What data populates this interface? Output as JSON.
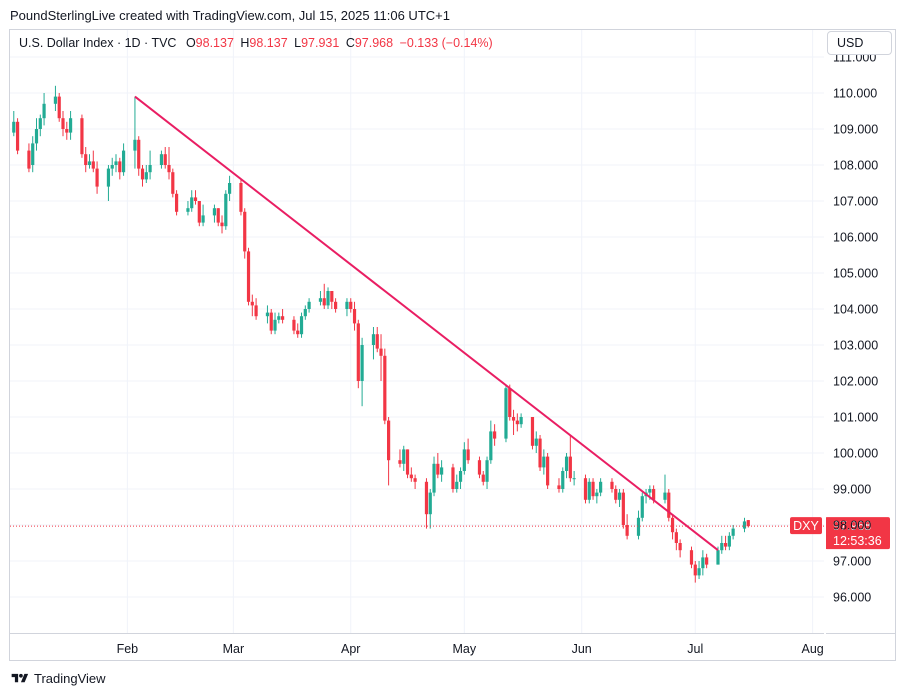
{
  "header": {
    "attribution": "PoundSterlingLive created with TradingView.com, Jul 15, 2025 11:06 UTC+1"
  },
  "legend": {
    "symbol": "U.S. Dollar Index · 1D · TVC",
    "open_label": "O",
    "open": "98.137",
    "high_label": "H",
    "high": "98.137",
    "low_label": "L",
    "low": "97.931",
    "close_label": "C",
    "close": "97.968",
    "change": "−0.133 (−0.14%)"
  },
  "currency": "USD",
  "footer": {
    "brand": "TradingView"
  },
  "colors": {
    "up": "#22ab94",
    "down": "#f23645",
    "trendline": "#e91e63",
    "grid": "#f0f3fa",
    "border": "#d1d4dc"
  },
  "chart_data": {
    "type": "candlestick",
    "symbol_tag": "DXY",
    "last_price": "97.968",
    "countdown": "12:53:36",
    "y_ticks": [
      "96.000",
      "97.000",
      "98.000",
      "99.000",
      "100.000",
      "101.000",
      "102.000",
      "103.000",
      "104.000",
      "105.000",
      "106.000",
      "107.000",
      "108.000",
      "109.000",
      "110.000",
      "111.000"
    ],
    "ylim": [
      94.9,
      111.2
    ],
    "x_ticks": [
      {
        "label": "Feb",
        "date": "2025-02-01"
      },
      {
        "label": "Mar",
        "date": "2025-03-01"
      },
      {
        "label": "Apr",
        "date": "2025-04-01"
      },
      {
        "label": "May",
        "date": "2025-05-01"
      },
      {
        "label": "Jun",
        "date": "2025-06-01"
      },
      {
        "label": "Jul",
        "date": "2025-07-01"
      },
      {
        "label": "Aug",
        "date": "2025-08-01"
      }
    ],
    "x_start": "2025-01-01",
    "x_end": "2025-08-04",
    "trendline": [
      {
        "date": "2025-02-03",
        "value": 109.9
      },
      {
        "date": "2025-07-07",
        "value": 97.3
      }
    ],
    "candles": [
      {
        "d": "2025-01-02",
        "o": 108.9,
        "h": 109.5,
        "l": 108.8,
        "c": 109.2
      },
      {
        "d": "2025-01-03",
        "o": 109.2,
        "h": 109.3,
        "l": 108.3,
        "c": 108.4
      },
      {
        "d": "2025-01-06",
        "o": 108.4,
        "h": 108.6,
        "l": 107.8,
        "c": 107.9
      },
      {
        "d": "2025-01-07",
        "o": 108.0,
        "h": 108.8,
        "l": 107.8,
        "c": 108.6
      },
      {
        "d": "2025-01-08",
        "o": 108.6,
        "h": 109.3,
        "l": 108.4,
        "c": 109.0
      },
      {
        "d": "2025-01-09",
        "o": 109.0,
        "h": 109.4,
        "l": 108.8,
        "c": 109.3
      },
      {
        "d": "2025-01-10",
        "o": 109.3,
        "h": 110.0,
        "l": 109.1,
        "c": 109.7
      },
      {
        "d": "2025-01-13",
        "o": 109.7,
        "h": 110.2,
        "l": 109.5,
        "c": 109.9
      },
      {
        "d": "2025-01-14",
        "o": 109.9,
        "h": 110.0,
        "l": 109.2,
        "c": 109.3
      },
      {
        "d": "2025-01-15",
        "o": 109.3,
        "h": 109.5,
        "l": 108.8,
        "c": 109.0
      },
      {
        "d": "2025-01-16",
        "o": 109.0,
        "h": 109.2,
        "l": 108.7,
        "c": 108.9
      },
      {
        "d": "2025-01-17",
        "o": 108.9,
        "h": 109.5,
        "l": 108.7,
        "c": 109.3
      },
      {
        "d": "2025-01-20",
        "o": 109.3,
        "h": 109.4,
        "l": 108.2,
        "c": 108.3
      },
      {
        "d": "2025-01-21",
        "o": 108.3,
        "h": 108.5,
        "l": 107.8,
        "c": 108.0
      },
      {
        "d": "2025-01-22",
        "o": 108.0,
        "h": 108.3,
        "l": 107.9,
        "c": 108.1
      },
      {
        "d": "2025-01-23",
        "o": 108.1,
        "h": 108.4,
        "l": 107.8,
        "c": 107.9
      },
      {
        "d": "2025-01-24",
        "o": 107.9,
        "h": 108.1,
        "l": 107.2,
        "c": 107.4
      },
      {
        "d": "2025-01-27",
        "o": 107.4,
        "h": 108.0,
        "l": 107.0,
        "c": 107.9
      },
      {
        "d": "2025-01-28",
        "o": 107.9,
        "h": 108.2,
        "l": 107.7,
        "c": 108.0
      },
      {
        "d": "2025-01-29",
        "o": 108.0,
        "h": 108.3,
        "l": 107.8,
        "c": 108.1
      },
      {
        "d": "2025-01-30",
        "o": 108.1,
        "h": 108.2,
        "l": 107.6,
        "c": 107.8
      },
      {
        "d": "2025-01-31",
        "o": 107.8,
        "h": 108.6,
        "l": 107.7,
        "c": 108.4
      },
      {
        "d": "2025-02-03",
        "o": 108.4,
        "h": 109.9,
        "l": 107.9,
        "c": 108.7
      },
      {
        "d": "2025-02-04",
        "o": 108.7,
        "h": 108.8,
        "l": 107.7,
        "c": 107.9
      },
      {
        "d": "2025-02-05",
        "o": 107.9,
        "h": 108.0,
        "l": 107.4,
        "c": 107.6
      },
      {
        "d": "2025-02-06",
        "o": 107.6,
        "h": 108.0,
        "l": 107.5,
        "c": 107.8
      },
      {
        "d": "2025-02-07",
        "o": 107.8,
        "h": 108.4,
        "l": 107.6,
        "c": 108.0
      },
      {
        "d": "2025-02-10",
        "o": 108.0,
        "h": 108.4,
        "l": 107.9,
        "c": 108.3
      },
      {
        "d": "2025-02-11",
        "o": 108.3,
        "h": 108.5,
        "l": 107.9,
        "c": 108.0
      },
      {
        "d": "2025-02-12",
        "o": 108.0,
        "h": 108.5,
        "l": 107.6,
        "c": 107.8
      },
      {
        "d": "2025-02-13",
        "o": 107.8,
        "h": 107.9,
        "l": 107.1,
        "c": 107.2
      },
      {
        "d": "2025-02-14",
        "o": 107.2,
        "h": 107.3,
        "l": 106.6,
        "c": 106.7
      },
      {
        "d": "2025-02-17",
        "o": 106.7,
        "h": 107.0,
        "l": 106.6,
        "c": 106.8
      },
      {
        "d": "2025-02-18",
        "o": 106.8,
        "h": 107.3,
        "l": 106.7,
        "c": 107.1
      },
      {
        "d": "2025-02-19",
        "o": 107.1,
        "h": 107.3,
        "l": 106.9,
        "c": 107.0
      },
      {
        "d": "2025-02-20",
        "o": 107.0,
        "h": 107.0,
        "l": 106.3,
        "c": 106.4
      },
      {
        "d": "2025-02-21",
        "o": 106.4,
        "h": 106.9,
        "l": 106.3,
        "c": 106.6
      },
      {
        "d": "2025-02-24",
        "o": 106.6,
        "h": 106.9,
        "l": 106.4,
        "c": 106.8
      },
      {
        "d": "2025-02-25",
        "o": 106.8,
        "h": 106.8,
        "l": 106.3,
        "c": 106.4
      },
      {
        "d": "2025-02-26",
        "o": 106.4,
        "h": 106.6,
        "l": 106.1,
        "c": 106.3
      },
      {
        "d": "2025-02-27",
        "o": 106.3,
        "h": 107.3,
        "l": 106.2,
        "c": 107.2
      },
      {
        "d": "2025-02-28",
        "o": 107.2,
        "h": 107.7,
        "l": 107.0,
        "c": 107.5
      },
      {
        "d": "2025-03-03",
        "o": 107.5,
        "h": 107.6,
        "l": 106.6,
        "c": 106.7
      },
      {
        "d": "2025-03-04",
        "o": 106.7,
        "h": 106.8,
        "l": 105.4,
        "c": 105.6
      },
      {
        "d": "2025-03-05",
        "o": 105.6,
        "h": 105.7,
        "l": 104.1,
        "c": 104.2
      },
      {
        "d": "2025-03-06",
        "o": 104.2,
        "h": 104.4,
        "l": 103.8,
        "c": 104.1
      },
      {
        "d": "2025-03-07",
        "o": 104.1,
        "h": 104.3,
        "l": 103.7,
        "c": 103.8
      },
      {
        "d": "2025-03-10",
        "o": 103.8,
        "h": 104.1,
        "l": 103.6,
        "c": 103.9
      },
      {
        "d": "2025-03-11",
        "o": 103.9,
        "h": 104.0,
        "l": 103.3,
        "c": 103.4
      },
      {
        "d": "2025-03-12",
        "o": 103.4,
        "h": 103.9,
        "l": 103.3,
        "c": 103.7
      },
      {
        "d": "2025-03-13",
        "o": 103.7,
        "h": 103.9,
        "l": 103.6,
        "c": 103.8
      },
      {
        "d": "2025-03-14",
        "o": 103.8,
        "h": 104.0,
        "l": 103.6,
        "c": 103.7
      },
      {
        "d": "2025-03-17",
        "o": 103.7,
        "h": 103.8,
        "l": 103.3,
        "c": 103.4
      },
      {
        "d": "2025-03-18",
        "o": 103.4,
        "h": 103.6,
        "l": 103.2,
        "c": 103.3
      },
      {
        "d": "2025-03-19",
        "o": 103.3,
        "h": 103.9,
        "l": 103.2,
        "c": 103.8
      },
      {
        "d": "2025-03-20",
        "o": 103.8,
        "h": 104.1,
        "l": 103.7,
        "c": 104.0
      },
      {
        "d": "2025-03-21",
        "o": 104.0,
        "h": 104.3,
        "l": 103.9,
        "c": 104.2
      },
      {
        "d": "2025-03-24",
        "o": 104.2,
        "h": 104.5,
        "l": 104.1,
        "c": 104.3
      },
      {
        "d": "2025-03-25",
        "o": 104.3,
        "h": 104.7,
        "l": 104.0,
        "c": 104.1
      },
      {
        "d": "2025-03-26",
        "o": 104.1,
        "h": 104.6,
        "l": 104.0,
        "c": 104.5
      },
      {
        "d": "2025-03-27",
        "o": 104.5,
        "h": 104.5,
        "l": 104.0,
        "c": 104.2
      },
      {
        "d": "2025-03-28",
        "o": 104.2,
        "h": 104.3,
        "l": 103.9,
        "c": 104.0
      },
      {
        "d": "2025-03-31",
        "o": 104.0,
        "h": 104.3,
        "l": 103.8,
        "c": 104.2
      },
      {
        "d": "2025-04-01",
        "o": 104.2,
        "h": 104.3,
        "l": 103.9,
        "c": 104.0
      },
      {
        "d": "2025-04-02",
        "o": 104.0,
        "h": 104.2,
        "l": 103.4,
        "c": 103.6
      },
      {
        "d": "2025-04-03",
        "o": 103.6,
        "h": 103.7,
        "l": 101.8,
        "c": 102.0
      },
      {
        "d": "2025-04-04",
        "o": 102.0,
        "h": 103.2,
        "l": 101.3,
        "c": 103.0
      },
      {
        "d": "2025-04-07",
        "o": 103.0,
        "h": 103.5,
        "l": 102.6,
        "c": 103.3
      },
      {
        "d": "2025-04-08",
        "o": 103.3,
        "h": 103.5,
        "l": 102.8,
        "c": 102.9
      },
      {
        "d": "2025-04-09",
        "o": 102.9,
        "h": 103.3,
        "l": 102.0,
        "c": 102.7
      },
      {
        "d": "2025-04-10",
        "o": 102.7,
        "h": 102.9,
        "l": 100.8,
        "c": 100.9
      },
      {
        "d": "2025-04-11",
        "o": 100.9,
        "h": 101.0,
        "l": 99.1,
        "c": 99.8
      },
      {
        "d": "2025-04-14",
        "o": 99.8,
        "h": 100.1,
        "l": 99.6,
        "c": 99.7
      },
      {
        "d": "2025-04-15",
        "o": 99.7,
        "h": 100.2,
        "l": 99.5,
        "c": 100.1
      },
      {
        "d": "2025-04-16",
        "o": 100.1,
        "h": 100.1,
        "l": 99.3,
        "c": 99.4
      },
      {
        "d": "2025-04-17",
        "o": 99.4,
        "h": 99.6,
        "l": 99.2,
        "c": 99.3
      },
      {
        "d": "2025-04-18",
        "o": 99.3,
        "h": 99.4,
        "l": 99.0,
        "c": 99.2
      },
      {
        "d": "2025-04-21",
        "o": 99.2,
        "h": 99.3,
        "l": 97.9,
        "c": 98.3
      },
      {
        "d": "2025-04-22",
        "o": 98.3,
        "h": 99.0,
        "l": 97.9,
        "c": 98.9
      },
      {
        "d": "2025-04-23",
        "o": 98.9,
        "h": 99.9,
        "l": 98.8,
        "c": 99.7
      },
      {
        "d": "2025-04-24",
        "o": 99.7,
        "h": 100.0,
        "l": 99.3,
        "c": 99.4
      },
      {
        "d": "2025-04-25",
        "o": 99.4,
        "h": 99.8,
        "l": 99.2,
        "c": 99.6
      },
      {
        "d": "2025-04-28",
        "o": 99.6,
        "h": 99.7,
        "l": 98.9,
        "c": 99.0
      },
      {
        "d": "2025-04-29",
        "o": 99.0,
        "h": 99.4,
        "l": 98.9,
        "c": 99.2
      },
      {
        "d": "2025-04-30",
        "o": 99.2,
        "h": 99.6,
        "l": 99.0,
        "c": 99.5
      },
      {
        "d": "2025-05-01",
        "o": 99.5,
        "h": 100.3,
        "l": 99.4,
        "c": 100.1
      },
      {
        "d": "2025-05-02",
        "o": 100.1,
        "h": 100.4,
        "l": 99.7,
        "c": 99.8
      },
      {
        "d": "2025-05-05",
        "o": 99.8,
        "h": 99.9,
        "l": 99.3,
        "c": 99.4
      },
      {
        "d": "2025-05-06",
        "o": 99.4,
        "h": 99.5,
        "l": 99.1,
        "c": 99.2
      },
      {
        "d": "2025-05-07",
        "o": 99.2,
        "h": 99.9,
        "l": 99.0,
        "c": 99.8
      },
      {
        "d": "2025-05-08",
        "o": 99.8,
        "h": 100.9,
        "l": 99.7,
        "c": 100.6
      },
      {
        "d": "2025-05-09",
        "o": 100.6,
        "h": 100.8,
        "l": 100.2,
        "c": 100.4
      },
      {
        "d": "2025-05-12",
        "o": 100.4,
        "h": 101.9,
        "l": 100.3,
        "c": 101.8
      },
      {
        "d": "2025-05-13",
        "o": 101.8,
        "h": 101.9,
        "l": 100.9,
        "c": 101.0
      },
      {
        "d": "2025-05-14",
        "o": 101.0,
        "h": 101.2,
        "l": 100.5,
        "c": 100.9
      },
      {
        "d": "2025-05-15",
        "o": 100.9,
        "h": 101.1,
        "l": 100.6,
        "c": 100.8
      },
      {
        "d": "2025-05-16",
        "o": 100.8,
        "h": 101.1,
        "l": 100.7,
        "c": 101.0
      },
      {
        "d": "2025-05-19",
        "o": 101.0,
        "h": 101.0,
        "l": 100.1,
        "c": 100.2
      },
      {
        "d": "2025-05-20",
        "o": 100.2,
        "h": 100.6,
        "l": 100.0,
        "c": 100.4
      },
      {
        "d": "2025-05-21",
        "o": 100.4,
        "h": 100.5,
        "l": 99.5,
        "c": 99.6
      },
      {
        "d": "2025-05-22",
        "o": 99.6,
        "h": 100.1,
        "l": 99.4,
        "c": 99.9
      },
      {
        "d": "2025-05-23",
        "o": 99.9,
        "h": 100.0,
        "l": 99.0,
        "c": 99.1
      },
      {
        "d": "2025-05-26",
        "o": 99.1,
        "h": 99.3,
        "l": 98.9,
        "c": 99.0
      },
      {
        "d": "2025-05-27",
        "o": 99.0,
        "h": 99.6,
        "l": 98.9,
        "c": 99.5
      },
      {
        "d": "2025-05-28",
        "o": 99.5,
        "h": 100.0,
        "l": 99.3,
        "c": 99.9
      },
      {
        "d": "2025-05-29",
        "o": 99.9,
        "h": 100.5,
        "l": 99.2,
        "c": 99.3
      },
      {
        "d": "2025-05-30",
        "o": 99.3,
        "h": 99.5,
        "l": 99.1,
        "c": 99.3
      },
      {
        "d": "2025-06-02",
        "o": 99.3,
        "h": 99.4,
        "l": 98.6,
        "c": 98.7
      },
      {
        "d": "2025-06-03",
        "o": 98.7,
        "h": 99.3,
        "l": 98.6,
        "c": 99.2
      },
      {
        "d": "2025-06-04",
        "o": 99.2,
        "h": 99.3,
        "l": 98.7,
        "c": 98.8
      },
      {
        "d": "2025-06-05",
        "o": 98.8,
        "h": 99.0,
        "l": 98.6,
        "c": 98.9
      },
      {
        "d": "2025-06-06",
        "o": 98.9,
        "h": 99.3,
        "l": 98.8,
        "c": 99.2
      },
      {
        "d": "2025-06-09",
        "o": 99.2,
        "h": 99.3,
        "l": 98.9,
        "c": 99.0
      },
      {
        "d": "2025-06-10",
        "o": 99.0,
        "h": 99.1,
        "l": 98.6,
        "c": 98.7
      },
      {
        "d": "2025-06-11",
        "o": 98.7,
        "h": 99.0,
        "l": 98.5,
        "c": 98.9
      },
      {
        "d": "2025-06-12",
        "o": 98.9,
        "h": 99.0,
        "l": 97.9,
        "c": 98.0
      },
      {
        "d": "2025-06-13",
        "o": 98.0,
        "h": 98.3,
        "l": 97.6,
        "c": 97.7
      },
      {
        "d": "2025-06-16",
        "o": 97.7,
        "h": 98.4,
        "l": 97.6,
        "c": 98.2
      },
      {
        "d": "2025-06-17",
        "o": 98.2,
        "h": 98.9,
        "l": 98.1,
        "c": 98.8
      },
      {
        "d": "2025-06-18",
        "o": 98.8,
        "h": 99.0,
        "l": 98.6,
        "c": 98.9
      },
      {
        "d": "2025-06-19",
        "o": 98.9,
        "h": 99.1,
        "l": 98.7,
        "c": 99.0
      },
      {
        "d": "2025-06-20",
        "o": 99.0,
        "h": 99.1,
        "l": 98.6,
        "c": 98.7
      },
      {
        "d": "2025-06-23",
        "o": 98.7,
        "h": 99.4,
        "l": 98.6,
        "c": 98.9
      },
      {
        "d": "2025-06-24",
        "o": 98.9,
        "h": 99.0,
        "l": 98.1,
        "c": 98.2
      },
      {
        "d": "2025-06-25",
        "o": 98.2,
        "h": 98.3,
        "l": 97.6,
        "c": 97.8
      },
      {
        "d": "2025-06-26",
        "o": 97.8,
        "h": 97.9,
        "l": 97.3,
        "c": 97.5
      },
      {
        "d": "2025-06-27",
        "o": 97.5,
        "h": 97.6,
        "l": 97.1,
        "c": 97.3
      },
      {
        "d": "2025-06-30",
        "o": 97.3,
        "h": 97.4,
        "l": 96.8,
        "c": 96.9
      },
      {
        "d": "2025-07-01",
        "o": 96.9,
        "h": 97.0,
        "l": 96.4,
        "c": 96.6
      },
      {
        "d": "2025-07-02",
        "o": 96.6,
        "h": 97.0,
        "l": 96.5,
        "c": 96.8
      },
      {
        "d": "2025-07-03",
        "o": 96.8,
        "h": 97.3,
        "l": 96.6,
        "c": 97.1
      },
      {
        "d": "2025-07-04",
        "o": 97.1,
        "h": 97.2,
        "l": 96.8,
        "c": 96.9
      },
      {
        "d": "2025-07-07",
        "o": 96.9,
        "h": 97.4,
        "l": 96.9,
        "c": 97.3
      },
      {
        "d": "2025-07-08",
        "o": 97.3,
        "h": 97.7,
        "l": 97.2,
        "c": 97.5
      },
      {
        "d": "2025-07-09",
        "o": 97.5,
        "h": 97.7,
        "l": 97.3,
        "c": 97.4
      },
      {
        "d": "2025-07-10",
        "o": 97.4,
        "h": 97.8,
        "l": 97.3,
        "c": 97.7
      },
      {
        "d": "2025-07-11",
        "o": 97.7,
        "h": 98.0,
        "l": 97.6,
        "c": 97.9
      },
      {
        "d": "2025-07-14",
        "o": 97.9,
        "h": 98.2,
        "l": 97.8,
        "c": 98.1
      },
      {
        "d": "2025-07-15",
        "o": 98.137,
        "h": 98.137,
        "l": 97.931,
        "c": 97.968
      }
    ]
  }
}
